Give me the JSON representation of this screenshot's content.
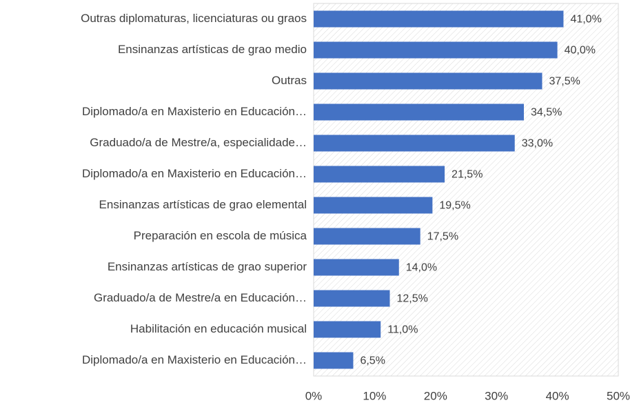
{
  "chart_data": {
    "type": "bar",
    "orientation": "horizontal",
    "categories": [
      "Outras diplomaturas, licenciaturas ou graos",
      "Ensinanzas artísticas de grao medio",
      "Outras",
      "Diplomado/a en Maxisterio en Educación…",
      "Graduado/a de Mestre/a, especialidade…",
      "Diplomado/a en Maxisterio en Educación…",
      "Ensinanzas artísticas de grao elemental",
      "Preparación en escola de música",
      "Ensinanzas artísticas de grao superior",
      "Graduado/a de Mestre/a en Educación…",
      "Habilitación en educación musical",
      "Diplomado/a en Maxisterio en Educación…"
    ],
    "values": [
      41,
      40,
      37.5,
      34.5,
      33,
      21.5,
      19.5,
      17.5,
      14,
      12.5,
      11,
      6.5
    ],
    "value_labels": [
      "41,0%",
      "40,0%",
      "37,5%",
      "34,5%",
      "33,0%",
      "21,5%",
      "19,5%",
      "17,5%",
      "14,0%",
      "12,5%",
      "11,0%",
      "6,5%"
    ],
    "color": "#4472c4",
    "xlim": [
      0,
      50
    ],
    "xticks": [
      {
        "value": 0,
        "label": "0%"
      },
      {
        "value": 10,
        "label": "10%"
      },
      {
        "value": 20,
        "label": "20%"
      },
      {
        "value": 30,
        "label": "30%"
      },
      {
        "value": 40,
        "label": "40%"
      },
      {
        "value": 50,
        "label": "50%"
      }
    ],
    "grid": false
  }
}
